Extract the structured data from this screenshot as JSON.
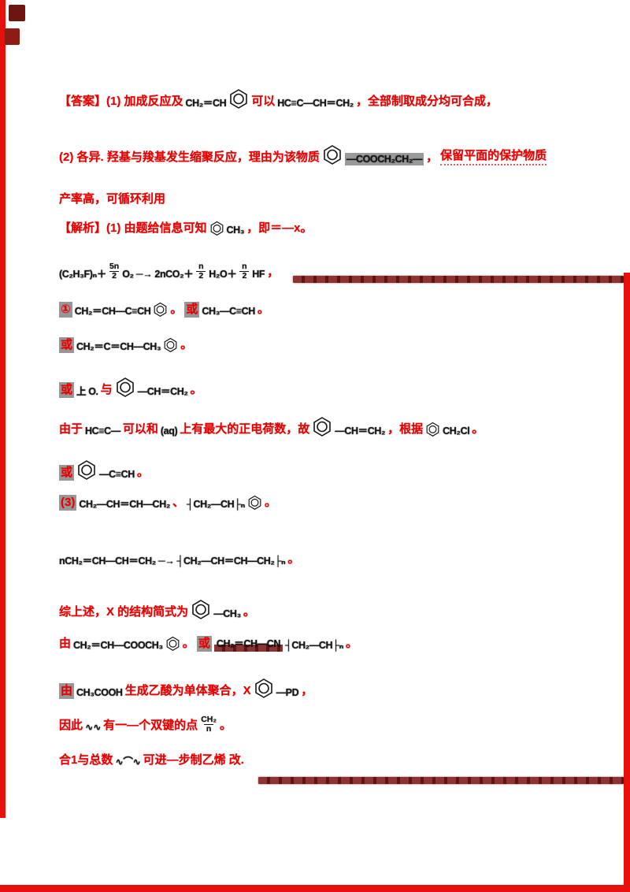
{
  "decor": {
    "strip_color": "#e8100c",
    "corner_square1_color": "#6f1511",
    "corner_square2_color": "#8c1d13",
    "dash_base_color": "#8c3433",
    "dash_dark_color": "#5d1413",
    "red_text_color": "#e60000",
    "gray_highlight_color": "#979797"
  },
  "lines": [
    {
      "id": "line-1",
      "segments": [
        {
          "type": "r",
          "text": "【答案】(1) 加成反应及"
        },
        {
          "type": "f",
          "text": "CH₂＝CH"
        },
        {
          "type": "hex"
        },
        {
          "type": "r",
          "text": "可以"
        },
        {
          "type": "f",
          "text": "HC≡C—CH＝CH₂"
        },
        {
          "type": "r",
          "text": "，全部制取成分均可合成，"
        }
      ]
    },
    {
      "id": "line-2",
      "segments": [
        {
          "type": "r",
          "text": "(2) 各异. 羟基与羧基发生缩聚反应，理由为该物质"
        },
        {
          "type": "hex"
        },
        {
          "type": "fg",
          "text": "—COOCH₂CH₂—"
        },
        {
          "type": "r",
          "text": "，"
        },
        {
          "type": "rd",
          "text": "保留平面的保护物质"
        }
      ]
    },
    {
      "id": "line-3",
      "segments": [
        {
          "type": "r",
          "text": "产率高，可循环利用"
        }
      ]
    },
    {
      "id": "line-4",
      "segments": [
        {
          "type": "r",
          "text": "【解析】(1) 由题给信息可知"
        },
        {
          "type": "hex2"
        },
        {
          "type": "f",
          "text": "CH₃"
        },
        {
          "type": "r",
          "text": "，即＝—x。"
        }
      ]
    },
    {
      "id": "line-5",
      "segments": [
        {
          "type": "f",
          "text": "(C₂H₃F)ₙ＋"
        },
        {
          "type": "frac",
          "num": "5n",
          "den": "2"
        },
        {
          "type": "f",
          "text": "O₂ ─→ 2nCO₂＋"
        },
        {
          "type": "frac",
          "num": "n",
          "den": "2"
        },
        {
          "type": "f",
          "text": "H₂O＋"
        },
        {
          "type": "frac",
          "num": "n",
          "den": "2"
        },
        {
          "type": "f",
          "text": "HF"
        },
        {
          "type": "r",
          "text": "，"
        }
      ]
    },
    {
      "id": "line-6",
      "segments": [
        {
          "type": "rg",
          "text": "①"
        },
        {
          "type": "f",
          "text": "CH₂＝CH—C≡CH"
        },
        {
          "type": "hex2"
        },
        {
          "type": "r",
          "text": "。"
        },
        {
          "type": "rg",
          "text": "或"
        },
        {
          "type": "f",
          "text": "CH₃—C≡CH"
        },
        {
          "type": "r",
          "text": "。"
        }
      ]
    },
    {
      "id": "line-7",
      "segments": [
        {
          "type": "rg",
          "text": "或"
        },
        {
          "type": "f",
          "text": "CH₂＝C＝CH—CH₃"
        },
        {
          "type": "hex2"
        },
        {
          "type": "r",
          "text": "。"
        }
      ]
    },
    {
      "id": "line-8",
      "segments": [
        {
          "type": "rg",
          "text": "或"
        },
        {
          "type": "f",
          "text": "上 O."
        },
        {
          "type": "r",
          "text": "与"
        },
        {
          "type": "hex"
        },
        {
          "type": "f",
          "text": "—CH＝CH₂"
        },
        {
          "type": "r",
          "text": "。"
        }
      ]
    },
    {
      "id": "line-9",
      "segments": [
        {
          "type": "r",
          "text": "由于"
        },
        {
          "type": "f",
          "text": "HC≡C—"
        },
        {
          "type": "r",
          "text": "可以和"
        },
        {
          "type": "f",
          "text": "(aq)"
        },
        {
          "type": "r",
          "text": "上有最大的正电荷数，故"
        },
        {
          "type": "hex"
        },
        {
          "type": "f",
          "text": "—CH＝CH₂"
        },
        {
          "type": "r",
          "text": "，根据"
        },
        {
          "type": "hex2"
        },
        {
          "type": "f",
          "text": "CH₂Cl"
        },
        {
          "type": "r",
          "text": "。"
        }
      ]
    },
    {
      "id": "line-10",
      "segments": [
        {
          "type": "rg",
          "text": "或"
        },
        {
          "type": "hex"
        },
        {
          "type": "f",
          "text": "—C≡CH"
        },
        {
          "type": "r",
          "text": "。"
        }
      ]
    },
    {
      "id": "line-11",
      "segments": [
        {
          "type": "rg",
          "text": "(3)"
        },
        {
          "type": "f",
          "text": "CH₂—CH＝CH—CH₂"
        },
        {
          "type": "r",
          "text": "、"
        },
        {
          "type": "f",
          "text": "┤CH₂—CH├ₙ"
        },
        {
          "type": "hex2"
        },
        {
          "type": "r",
          "text": "。"
        }
      ]
    },
    {
      "id": "line-12",
      "segments": [
        {
          "type": "f",
          "text": "nCH₂＝CH—CH＝CH₂ ─→"
        },
        {
          "type": "f",
          "text": "┤CH₂—CH＝CH—CH₂├ₙ"
        },
        {
          "type": "r",
          "text": "。"
        }
      ]
    },
    {
      "id": "line-13",
      "segments": [
        {
          "type": "r",
          "text": "综上述，X 的结构简式为"
        },
        {
          "type": "hex"
        },
        {
          "type": "f",
          "text": "—CH₃"
        },
        {
          "type": "r",
          "text": "。"
        }
      ]
    },
    {
      "id": "line-14",
      "segments": [
        {
          "type": "r",
          "text": "由"
        },
        {
          "type": "f",
          "text": "CH₂＝CH—COOCH₃"
        },
        {
          "type": "hex2"
        },
        {
          "type": "r",
          "text": "。"
        },
        {
          "type": "rg",
          "text": "或"
        },
        {
          "type": "bu",
          "text": "CH₂＝CH—CN"
        },
        {
          "type": "f",
          "text": "┤CH₂—CH├ₙ"
        },
        {
          "type": "r",
          "text": "。"
        }
      ]
    },
    {
      "id": "line-15",
      "segments": [
        {
          "type": "rg",
          "text": "由"
        },
        {
          "type": "f",
          "text": "CH₃COOH"
        },
        {
          "type": "r",
          "text": "生成乙酸为单体聚合，X"
        },
        {
          "type": "hex"
        },
        {
          "type": "f",
          "text": "—PD"
        },
        {
          "type": "r",
          "text": "，"
        }
      ]
    },
    {
      "id": "line-16",
      "segments": [
        {
          "type": "r",
          "text": "因此"
        },
        {
          "type": "f",
          "text": "∿∿"
        },
        {
          "type": "r",
          "text": "有一—个双键的点"
        },
        {
          "type": "frac",
          "num": "CH₂",
          "den": "n"
        },
        {
          "type": "r",
          "text": "。"
        }
      ]
    },
    {
      "id": "line-17",
      "segments": [
        {
          "type": "r",
          "text": "合1与总数"
        },
        {
          "type": "f",
          "text": "∿⌒∿"
        },
        {
          "type": "r",
          "text": "可进—步制乙烯 改."
        }
      ]
    }
  ]
}
